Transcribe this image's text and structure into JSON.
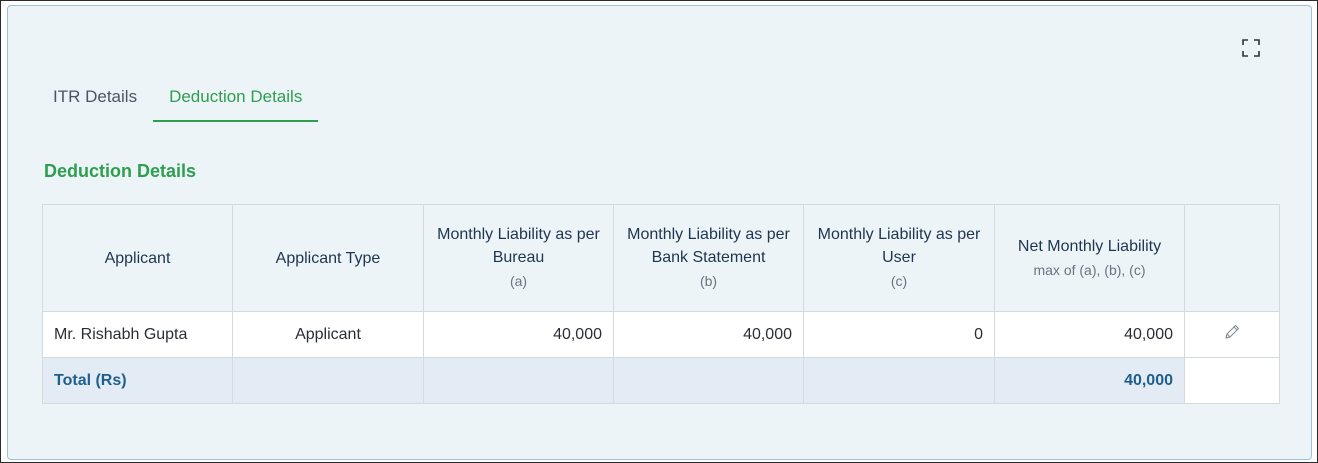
{
  "tabs": [
    {
      "label": "ITR Details",
      "active": false
    },
    {
      "label": "Deduction Details",
      "active": true
    }
  ],
  "section": {
    "title": "Deduction Details"
  },
  "table": {
    "headers": [
      {
        "label": "Applicant",
        "sub": ""
      },
      {
        "label": "Applicant Type",
        "sub": ""
      },
      {
        "label": "Monthly Liability as per Bureau",
        "sub": "(a)"
      },
      {
        "label": "Monthly Liability as per Bank Statement",
        "sub": "(b)"
      },
      {
        "label": "Monthly Liability as per User",
        "sub": "(c)"
      },
      {
        "label": "Net Monthly Liability",
        "sub": "max of (a), (b), (c)"
      },
      {
        "label": "",
        "sub": ""
      }
    ],
    "rows": [
      {
        "applicant": "Mr. Rishabh Gupta",
        "type": "Applicant",
        "bureau": "40,000",
        "bank_statement": "40,000",
        "user": "0",
        "net": "40,000"
      }
    ],
    "total": {
      "label": "Total (Rs)",
      "net": "40,000"
    }
  },
  "icons": {
    "expand": "expand-icon",
    "edit": "pencil-icon"
  },
  "colors": {
    "accent": "#2e9e4f",
    "link": "#1f6390",
    "panel_bg": "#edf4f7"
  }
}
